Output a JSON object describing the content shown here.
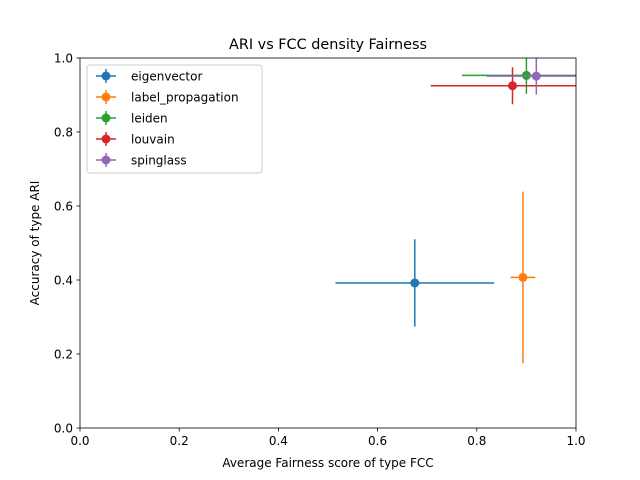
{
  "chart_data": {
    "type": "scatter",
    "title": "ARI vs FCC density Fairness",
    "xlabel": "Average Fairness score of type FCC",
    "ylabel": "Accuracy of type ARI",
    "xlim": [
      0,
      1
    ],
    "ylim": [
      0,
      1
    ],
    "xticks": [
      "0.0",
      "0.2",
      "0.4",
      "0.6",
      "0.8",
      "1.0"
    ],
    "yticks": [
      "0.0",
      "0.2",
      "0.4",
      "0.6",
      "0.8",
      "1.0"
    ],
    "grid": false,
    "legend_position": "top-left",
    "series": [
      {
        "name": "eigenvector",
        "color": "#1f77b4",
        "x": 0.675,
        "y": 0.392,
        "xerr": 0.16,
        "yerr": 0.118
      },
      {
        "name": "label_propagation",
        "color": "#ff7f0e",
        "x": 0.893,
        "y": 0.407,
        "xerr": 0.025,
        "yerr": 0.232
      },
      {
        "name": "leiden",
        "color": "#2ca02c",
        "x": 0.9,
        "y": 0.953,
        "xerr": 0.13,
        "yerr": 0.05
      },
      {
        "name": "louvain",
        "color": "#d62728",
        "x": 0.872,
        "y": 0.925,
        "xerr": 0.165,
        "yerr": 0.05
      },
      {
        "name": "spinglass",
        "color": "#9467bd",
        "x": 0.92,
        "y": 0.951,
        "xerr": 0.1,
        "yerr": 0.05
      }
    ]
  }
}
